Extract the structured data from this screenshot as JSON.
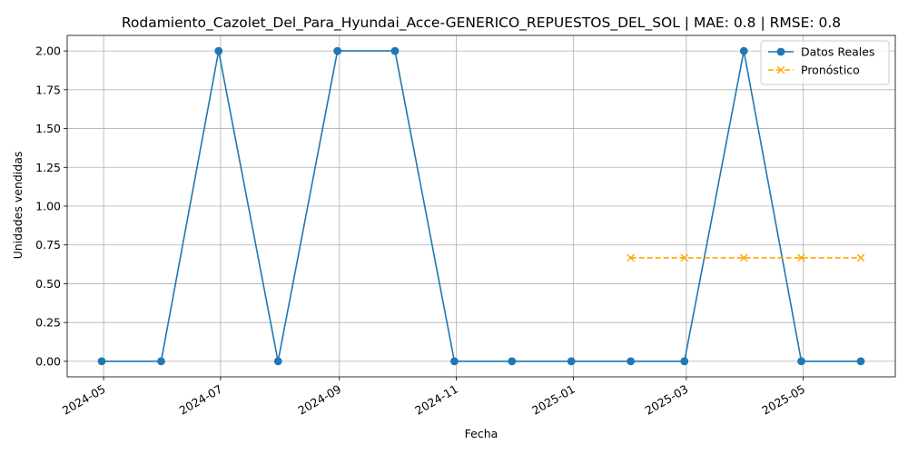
{
  "chart_data": {
    "type": "line",
    "title": "Rodamiento_Cazolet_Del_Para_Hyundai_Acce-GENERICO_REPUESTOS_DEL_SOL | MAE: 0.8 | RMSE: 0.8",
    "xlabel": "Fecha",
    "ylabel": "Unidades vendidas",
    "grid": true,
    "legend_position": "top-right",
    "ylim": [
      -0.1,
      2.1
    ],
    "xlim": [
      "2024-04-12",
      "2025-06-18"
    ],
    "x_ticks": [
      "2024-05",
      "2024-07",
      "2024-09",
      "2024-11",
      "2025-01",
      "2025-03",
      "2025-05"
    ],
    "y_ticks": [
      "0.00",
      "0.25",
      "0.50",
      "0.75",
      "1.00",
      "1.25",
      "1.50",
      "1.75",
      "2.00"
    ],
    "series": [
      {
        "name": "Datos Reales",
        "color": "#1f77b4",
        "style": "solid",
        "marker": "circle",
        "x": [
          "2024-04-30",
          "2024-05-31",
          "2024-06-30",
          "2024-07-31",
          "2024-08-31",
          "2024-09-30",
          "2024-10-31",
          "2024-11-30",
          "2024-12-31",
          "2025-01-31",
          "2025-02-28",
          "2025-03-31",
          "2025-04-30",
          "2025-05-31"
        ],
        "values": [
          0,
          0,
          2,
          0,
          2,
          2,
          0,
          0,
          0,
          0,
          0,
          2,
          0,
          0
        ]
      },
      {
        "name": "Pronóstico",
        "color": "#ffa500",
        "style": "dashed",
        "marker": "x",
        "x": [
          "2025-01-31",
          "2025-02-28",
          "2025-03-31",
          "2025-04-30",
          "2025-05-31"
        ],
        "values": [
          0.667,
          0.667,
          0.667,
          0.667,
          0.667
        ]
      }
    ]
  }
}
